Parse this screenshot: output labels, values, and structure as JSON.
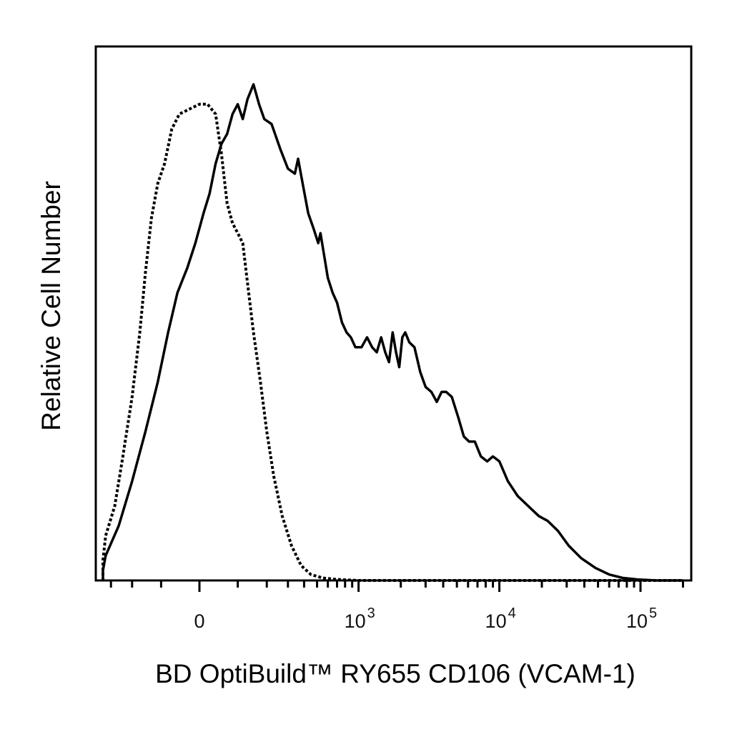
{
  "chart_data": {
    "type": "line",
    "title": "",
    "xlabel": "BD OptiBuild™ RY655 CD106 (VCAM-1)",
    "ylabel": "Relative Cell Number",
    "x_scale": "biexponential",
    "x_ticks": [
      {
        "value": 0,
        "label": "0"
      },
      {
        "value": 1000,
        "base": "10",
        "exp": "3"
      },
      {
        "value": 10000,
        "base": "10",
        "exp": "4"
      },
      {
        "value": 100000,
        "base": "10",
        "exp": "5"
      }
    ],
    "x_minor_ticks": [
      -300,
      -200,
      -100,
      100,
      200,
      300,
      400,
      500,
      600,
      700,
      800,
      900,
      2000,
      3000,
      4000,
      5000,
      6000,
      7000,
      8000,
      9000,
      20000,
      30000,
      40000,
      50000,
      60000,
      70000,
      80000,
      90000,
      200000
    ],
    "ylim": [
      0,
      1
    ],
    "grid": false,
    "legend": "none",
    "series": [
      {
        "style": "solid",
        "color": "#000000",
        "points": [
          [
            -700,
            0.0
          ],
          [
            -550,
            0.005
          ],
          [
            -420,
            0.02
          ],
          [
            -330,
            0.05
          ],
          [
            -260,
            0.11
          ],
          [
            -200,
            0.2
          ],
          [
            -150,
            0.3
          ],
          [
            -110,
            0.4
          ],
          [
            -80,
            0.5
          ],
          [
            -55,
            0.58
          ],
          [
            -30,
            0.63
          ],
          [
            -10,
            0.68
          ],
          [
            10,
            0.74
          ],
          [
            25,
            0.78
          ],
          [
            40,
            0.84
          ],
          [
            55,
            0.88
          ],
          [
            70,
            0.9
          ],
          [
            85,
            0.94
          ],
          [
            100,
            0.96
          ],
          [
            115,
            0.93
          ],
          [
            130,
            0.97
          ],
          [
            150,
            1.0
          ],
          [
            170,
            0.96
          ],
          [
            190,
            0.93
          ],
          [
            220,
            0.92
          ],
          [
            260,
            0.87
          ],
          [
            300,
            0.83
          ],
          [
            340,
            0.82
          ],
          [
            360,
            0.85
          ],
          [
            390,
            0.8
          ],
          [
            430,
            0.74
          ],
          [
            470,
            0.71
          ],
          [
            510,
            0.68
          ],
          [
            530,
            0.7
          ],
          [
            560,
            0.66
          ],
          [
            600,
            0.61
          ],
          [
            650,
            0.58
          ],
          [
            700,
            0.56
          ],
          [
            760,
            0.52
          ],
          [
            820,
            0.5
          ],
          [
            880,
            0.49
          ],
          [
            950,
            0.47
          ],
          [
            1050,
            0.47
          ],
          [
            1150,
            0.49
          ],
          [
            1250,
            0.47
          ],
          [
            1350,
            0.46
          ],
          [
            1450,
            0.49
          ],
          [
            1550,
            0.46
          ],
          [
            1650,
            0.44
          ],
          [
            1750,
            0.5
          ],
          [
            1850,
            0.46
          ],
          [
            1950,
            0.43
          ],
          [
            2050,
            0.49
          ],
          [
            2150,
            0.5
          ],
          [
            2300,
            0.48
          ],
          [
            2500,
            0.47
          ],
          [
            2750,
            0.42
          ],
          [
            3000,
            0.39
          ],
          [
            3300,
            0.38
          ],
          [
            3600,
            0.36
          ],
          [
            3900,
            0.38
          ],
          [
            4200,
            0.38
          ],
          [
            4600,
            0.37
          ],
          [
            5100,
            0.33
          ],
          [
            5600,
            0.29
          ],
          [
            6100,
            0.28
          ],
          [
            6700,
            0.28
          ],
          [
            7400,
            0.25
          ],
          [
            8200,
            0.24
          ],
          [
            9000,
            0.25
          ],
          [
            10000,
            0.24
          ],
          [
            11500,
            0.2
          ],
          [
            13500,
            0.17
          ],
          [
            16000,
            0.15
          ],
          [
            19000,
            0.13
          ],
          [
            22000,
            0.12
          ],
          [
            26000,
            0.1
          ],
          [
            31000,
            0.07
          ],
          [
            38000,
            0.045
          ],
          [
            48000,
            0.025
          ],
          [
            60000,
            0.012
          ],
          [
            75000,
            0.005
          ],
          [
            95000,
            0.002
          ],
          [
            130000,
            0.0
          ],
          [
            200000,
            0.0
          ]
        ]
      },
      {
        "style": "dotted",
        "color": "#000000",
        "points": [
          [
            -700,
            0.0
          ],
          [
            -550,
            0.01
          ],
          [
            -420,
            0.04
          ],
          [
            -330,
            0.09
          ],
          [
            -280,
            0.15
          ],
          [
            -240,
            0.25
          ],
          [
            -200,
            0.37
          ],
          [
            -170,
            0.5
          ],
          [
            -150,
            0.62
          ],
          [
            -130,
            0.73
          ],
          [
            -110,
            0.8
          ],
          [
            -90,
            0.84
          ],
          [
            -70,
            0.91
          ],
          [
            -50,
            0.94
          ],
          [
            -25,
            0.95
          ],
          [
            0,
            0.96
          ],
          [
            20,
            0.96
          ],
          [
            40,
            0.94
          ],
          [
            55,
            0.86
          ],
          [
            70,
            0.76
          ],
          [
            85,
            0.72
          ],
          [
            100,
            0.7
          ],
          [
            115,
            0.68
          ],
          [
            130,
            0.6
          ],
          [
            150,
            0.5
          ],
          [
            175,
            0.4
          ],
          [
            200,
            0.3
          ],
          [
            230,
            0.21
          ],
          [
            270,
            0.13
          ],
          [
            320,
            0.07
          ],
          [
            380,
            0.03
          ],
          [
            450,
            0.012
          ],
          [
            550,
            0.005
          ],
          [
            700,
            0.002
          ],
          [
            1000,
            0.0
          ],
          [
            200000,
            0.0
          ]
        ]
      }
    ]
  }
}
